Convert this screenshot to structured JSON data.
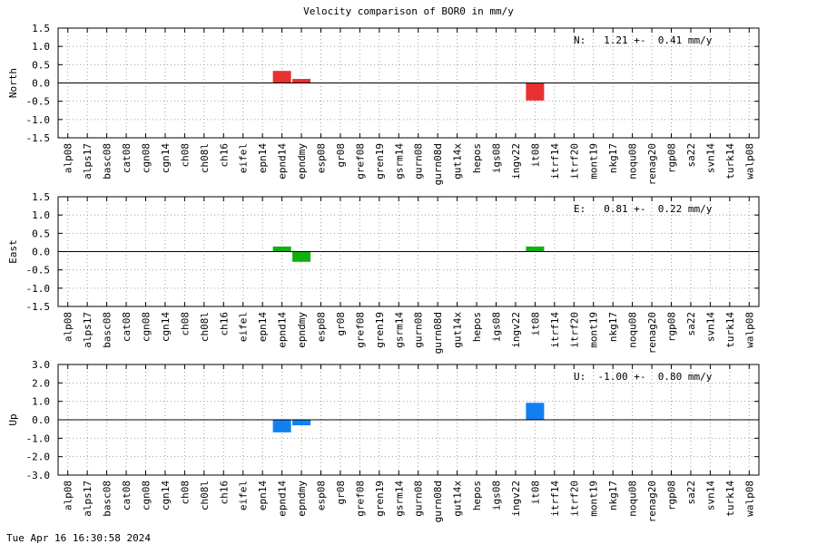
{
  "title": "Velocity comparison of BOR0 in mm/y",
  "footer": "Tue Apr 16 16:30:58 2024",
  "chart_data": [
    {
      "type": "bar",
      "ylabel": "North",
      "ylim": [
        -1.5,
        1.5
      ],
      "yticks": [
        -1.5,
        -1.0,
        -0.5,
        0.0,
        0.5,
        1.0,
        1.5
      ],
      "annotation": "N:   1.21 +-  0.41 mm/y",
      "color": "#e83030",
      "grid": true,
      "categories": [
        "alp08",
        "alps17",
        "basc08",
        "cat08",
        "cgn08",
        "cgn14",
        "ch08",
        "ch08l",
        "ch16",
        "eifel",
        "epn14",
        "epnd14",
        "epndmy",
        "esp08",
        "gr08",
        "gref08",
        "gren19",
        "gsrm14",
        "gurn08",
        "gurn08d",
        "gut14x",
        "hepos",
        "igs08",
        "ingv22",
        "it08",
        "itrf14",
        "itrf20",
        "mont19",
        "nkg17",
        "noqu08",
        "renag20",
        "rgp08",
        "sa22",
        "svn14",
        "turk14",
        "walp08"
      ],
      "values": [
        null,
        null,
        null,
        null,
        null,
        null,
        null,
        null,
        null,
        null,
        null,
        0.33,
        0.11,
        null,
        null,
        null,
        null,
        null,
        null,
        null,
        null,
        null,
        null,
        null,
        -0.48,
        null,
        null,
        null,
        null,
        null,
        null,
        null,
        null,
        null,
        null,
        null
      ]
    },
    {
      "type": "bar",
      "ylabel": "East",
      "ylim": [
        -1.5,
        1.5
      ],
      "yticks": [
        -1.5,
        -1.0,
        -0.5,
        0.0,
        0.5,
        1.0,
        1.5
      ],
      "annotation": "E:   0.81 +-  0.22 mm/y",
      "color": "#10b010",
      "grid": true,
      "categories": [
        "alp08",
        "alps17",
        "basc08",
        "cat08",
        "cgn08",
        "cgn14",
        "ch08",
        "ch08l",
        "ch16",
        "eifel",
        "epn14",
        "epnd14",
        "epndmy",
        "esp08",
        "gr08",
        "gref08",
        "gren19",
        "gsrm14",
        "gurn08",
        "gurn08d",
        "gut14x",
        "hepos",
        "igs08",
        "ingv22",
        "it08",
        "itrf14",
        "itrf20",
        "mont19",
        "nkg17",
        "noqu08",
        "renag20",
        "rgp08",
        "sa22",
        "svn14",
        "turk14",
        "walp08"
      ],
      "values": [
        null,
        null,
        null,
        null,
        null,
        null,
        null,
        null,
        null,
        null,
        null,
        0.14,
        -0.28,
        null,
        null,
        null,
        null,
        null,
        null,
        null,
        null,
        null,
        null,
        null,
        0.14,
        null,
        null,
        null,
        null,
        null,
        null,
        null,
        null,
        null,
        null,
        null
      ]
    },
    {
      "type": "bar",
      "ylabel": "Up",
      "ylim": [
        -3.0,
        3.0
      ],
      "yticks": [
        -3.0,
        -2.0,
        -1.0,
        0.0,
        1.0,
        2.0,
        3.0
      ],
      "annotation": "U:  -1.00 +-  0.80 mm/y",
      "color": "#1080f0",
      "grid": true,
      "categories": [
        "alp08",
        "alps17",
        "basc08",
        "cat08",
        "cgn08",
        "cgn14",
        "ch08",
        "ch08l",
        "ch16",
        "eifel",
        "epn14",
        "epnd14",
        "epndmy",
        "esp08",
        "gr08",
        "gref08",
        "gren19",
        "gsrm14",
        "gurn08",
        "gurn08d",
        "gut14x",
        "hepos",
        "igs08",
        "ingv22",
        "it08",
        "itrf14",
        "itrf20",
        "mont19",
        "nkg17",
        "noqu08",
        "renag20",
        "rgp08",
        "sa22",
        "svn14",
        "turk14",
        "walp08"
      ],
      "values": [
        null,
        null,
        null,
        null,
        null,
        null,
        null,
        null,
        null,
        null,
        null,
        -0.68,
        -0.3,
        null,
        null,
        null,
        null,
        null,
        null,
        null,
        null,
        null,
        null,
        null,
        0.92,
        null,
        null,
        null,
        null,
        null,
        null,
        null,
        null,
        null,
        null,
        null
      ]
    }
  ]
}
